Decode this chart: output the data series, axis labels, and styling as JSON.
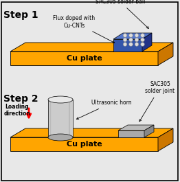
{
  "background_color": "#e8e8e8",
  "plate_top_color": "#FFA500",
  "plate_front_color": "#FFA500",
  "plate_right_color": "#CC7700",
  "flux_top_color": "#5577CC",
  "flux_front_color": "#3355AA",
  "flux_right_color": "#223388",
  "solder_ball_color": "#DDDDDD",
  "solder_ball_edge": "#888888",
  "cylinder_face": "#CCCCCC",
  "cylinder_dark": "#AAAAAA",
  "cylinder_top_color": "#E8E8E8",
  "solder_joint_top": "#BBBBBB",
  "solder_joint_front": "#AAAAAA",
  "solder_joint_right": "#888888",
  "arrow_color": "red",
  "text_color": "black",
  "step1_label": "Step 1",
  "step2_label": "Step 2",
  "flux_label": "Flux doped with\nCu-CNTs",
  "sac305_ball_label": "SAC305 solder ball",
  "cu_plate_label1": "Cu plate",
  "cu_plate_label2": "Cu plate",
  "ultrasonic_label": "Ultrasonic horn",
  "loading_label": "Loading\ndirection",
  "sac305_joint_label": "SAC305\nsolder joint",
  "fig_width": 2.62,
  "fig_height": 2.65,
  "dpi": 100
}
